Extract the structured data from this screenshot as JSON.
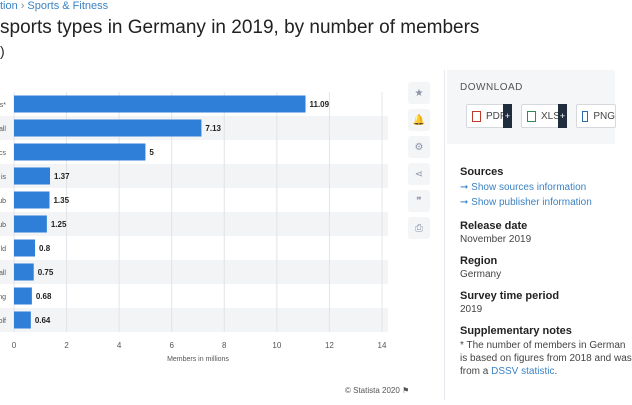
{
  "breadcrumb": {
    "parent": "tion",
    "current": "Sports & Fitness"
  },
  "title": "sports types in Germany in 2019, by number of members",
  "subtitle": ")",
  "toolbar": {
    "icons": [
      "star-icon",
      "bell-icon",
      "gear-icon",
      "share-icon",
      "quote-icon",
      "print-icon"
    ]
  },
  "download": {
    "title": "DOWNLOAD",
    "buttons": [
      {
        "label": "PDF"
      },
      {
        "label": "XLS"
      },
      {
        "label": "PNG"
      }
    ]
  },
  "info": {
    "sources_title": "Sources",
    "show_sources": "➞ Show sources information",
    "show_publisher": "➞ Show publisher information",
    "release_title": "Release date",
    "release_value": "November 2019",
    "region_title": "Region",
    "region_value": "Germany",
    "survey_title": "Survey time period",
    "survey_value": "2019",
    "notes_title": "Supplementary notes",
    "notes_line1": "* The number of members in German",
    "notes_line2": "is based on figures from 2018 and was",
    "notes_line3_pre": "from a ",
    "notes_link": "DSSV statistic",
    "notes_line3_post": "."
  },
  "credit": "© Statista 2020",
  "chart_data": {
    "type": "bar",
    "orientation": "horizontal",
    "categories": [
      "s*",
      "all",
      "cs",
      "is",
      "ub",
      "ub",
      "ld",
      "all",
      "ng",
      "olf"
    ],
    "values": [
      11.09,
      7.13,
      5,
      1.37,
      1.35,
      1.25,
      0.8,
      0.75,
      0.68,
      0.64
    ],
    "value_labels": [
      "11.09",
      "7.13",
      "5",
      "1.37",
      "1.35",
      "1.25",
      "0.8",
      "0.75",
      "0.68",
      "0.64"
    ],
    "xlabel": "Members in millions",
    "xlim": [
      0,
      14
    ],
    "xticks": [
      "0",
      "2",
      "4",
      "6",
      "8",
      "10",
      "12",
      "14"
    ],
    "grid": true,
    "color": "#2f7ed8"
  }
}
